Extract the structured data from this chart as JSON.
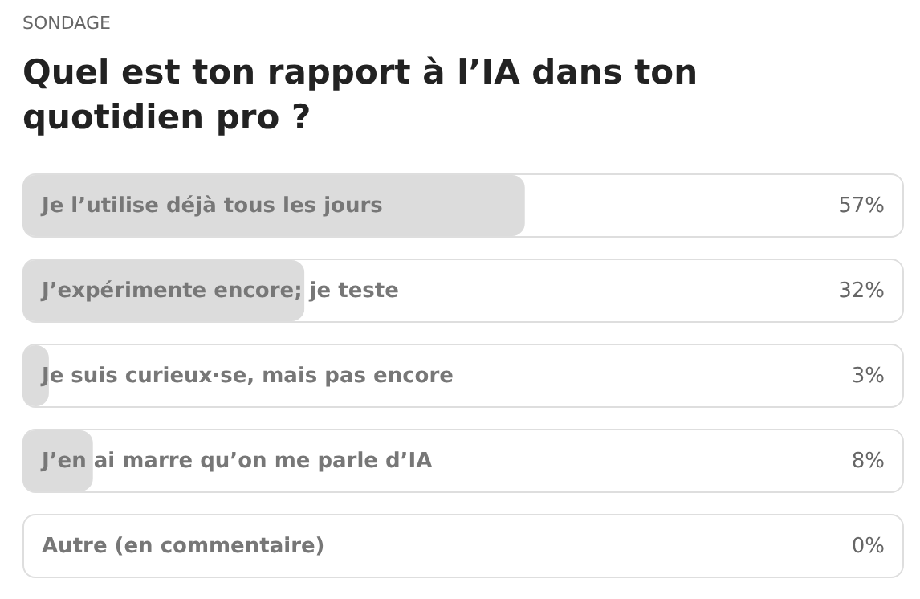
{
  "chart_data": {
    "type": "bar",
    "orientation": "horizontal",
    "subtitle": "SONDAGE",
    "title": "Quel est ton rapport à l’IA dans ton quotidien pro ?",
    "categories": [
      "Je l’utilise déjà tous les jours",
      "J’expérimente encore; je teste",
      "Je suis curieux·se, mais pas encore",
      "J’en ai marre qu’on me parle d’IA",
      "Autre (en commentaire)"
    ],
    "values": [
      57,
      32,
      3,
      8,
      0
    ],
    "value_labels": [
      "57%",
      "32%",
      "3%",
      "8%",
      "0%"
    ],
    "color": "#dcdcdc",
    "xlim": [
      0,
      100
    ]
  }
}
